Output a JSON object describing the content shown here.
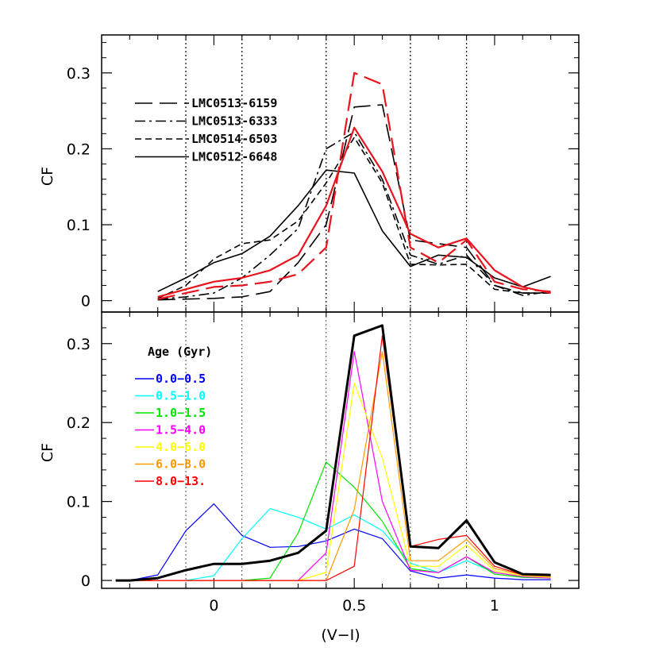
{
  "chart_data": [
    {
      "type": "line",
      "panel": "top",
      "ylabel": "CF",
      "xlim": [
        -0.4,
        1.3
      ],
      "ylim": [
        -0.015,
        0.35
      ],
      "yticks": [
        0,
        0.1,
        0.2,
        0.3
      ],
      "ytick_labels": [
        "0",
        "0.1",
        "0.2",
        "0.3"
      ],
      "vlines": [
        -0.1,
        0.1,
        0.4,
        0.7,
        0.9
      ],
      "series": [
        {
          "name": "LMC0513-6159",
          "dash": "longdash",
          "color": "#000000",
          "x": [
            -0.2,
            -0.1,
            0,
            0.1,
            0.2,
            0.3,
            0.4,
            0.5,
            0.6,
            0.7,
            0.8,
            0.9,
            1.0,
            1.1,
            1.2
          ],
          "y": [
            0.001,
            0.002,
            0.003,
            0.005,
            0.012,
            0.05,
            0.1,
            0.255,
            0.258,
            0.08,
            0.075,
            0.07,
            0.02,
            0.01,
            0.01
          ]
        },
        {
          "name": "LMC0513-6333",
          "dash": "dashdot",
          "color": "#000000",
          "x": [
            -0.2,
            -0.1,
            0,
            0.1,
            0.2,
            0.3,
            0.4,
            0.5,
            0.6,
            0.7,
            0.8,
            0.9,
            1.0,
            1.1,
            1.2
          ],
          "y": [
            0.002,
            0.005,
            0.01,
            0.03,
            0.06,
            0.095,
            0.2,
            0.222,
            0.16,
            0.06,
            0.048,
            0.06,
            0.02,
            0.007,
            0.012
          ]
        },
        {
          "name": "LMC0514-6503",
          "dash": "shortdash",
          "color": "#000000",
          "x": [
            -0.2,
            -0.1,
            0,
            0.1,
            0.2,
            0.3,
            0.4,
            0.5,
            0.6,
            0.7,
            0.8,
            0.9,
            1.0,
            1.1,
            1.2
          ],
          "y": [
            0.003,
            0.02,
            0.055,
            0.075,
            0.08,
            0.105,
            0.155,
            0.215,
            0.155,
            0.048,
            0.047,
            0.048,
            0.015,
            0.01,
            0.01
          ]
        },
        {
          "name": "LMC0512-6648",
          "dash": "solid",
          "color": "#000000",
          "x": [
            -0.2,
            -0.1,
            0,
            0.1,
            0.2,
            0.3,
            0.4,
            0.5,
            0.6,
            0.7,
            0.8,
            0.9,
            1.0,
            1.1,
            1.2
          ],
          "y": [
            0.012,
            0.03,
            0.05,
            0.062,
            0.085,
            0.125,
            0.172,
            0.168,
            0.092,
            0.045,
            0.06,
            0.057,
            0.03,
            0.018,
            0.032
          ]
        },
        {
          "name": "",
          "dash": "longdash",
          "color": "#e8141e",
          "x": [
            -0.2,
            -0.1,
            0,
            0.1,
            0.2,
            0.3,
            0.4,
            0.5,
            0.6,
            0.7,
            0.8,
            0.9,
            1.0,
            1.1,
            1.2
          ],
          "y": [
            0.002,
            0.01,
            0.018,
            0.02,
            0.025,
            0.035,
            0.07,
            0.3,
            0.285,
            0.07,
            0.05,
            0.08,
            0.025,
            0.015,
            0.012
          ]
        },
        {
          "name": "",
          "dash": "solid",
          "color": "#e8141e",
          "x": [
            -0.2,
            -0.1,
            0,
            0.1,
            0.2,
            0.3,
            0.4,
            0.5,
            0.6,
            0.7,
            0.8,
            0.9,
            1.0,
            1.1,
            1.2
          ],
          "y": [
            0.005,
            0.015,
            0.025,
            0.03,
            0.04,
            0.06,
            0.125,
            0.228,
            0.17,
            0.088,
            0.07,
            0.082,
            0.04,
            0.018,
            0.01
          ]
        }
      ]
    },
    {
      "type": "line",
      "panel": "bottom",
      "ylabel": "CF",
      "xlabel": "(V−I)",
      "xlim": [
        -0.4,
        1.3
      ],
      "ylim": [
        -0.01,
        0.34
      ],
      "xticks": [
        0,
        0.5,
        1
      ],
      "xtick_labels": [
        "0",
        "0.5",
        "1"
      ],
      "yticks": [
        0,
        0.1,
        0.2,
        0.3
      ],
      "ytick_labels": [
        "0",
        "0.1",
        "0.2",
        "0.3"
      ],
      "vlines": [
        -0.1,
        0.1,
        0.4,
        0.7,
        0.9
      ],
      "legend_title": "Age (Gyr)",
      "series": [
        {
          "name": "0.0−0.5",
          "color": "#0000ff",
          "width": 1.2,
          "x": [
            -0.35,
            -0.3,
            -0.2,
            -0.1,
            0,
            0.1,
            0.2,
            0.3,
            0.4,
            0.5,
            0.6,
            0.7,
            0.8,
            0.9,
            1.0,
            1.1,
            1.2
          ],
          "y": [
            0,
            0,
            0.007,
            0.063,
            0.097,
            0.057,
            0.042,
            0.043,
            0.05,
            0.065,
            0.053,
            0.012,
            0.003,
            0.007,
            0.003,
            0.001,
            0.001
          ]
        },
        {
          "name": "0.5−1.0",
          "color": "#00ffff",
          "width": 1.2,
          "x": [
            -0.35,
            -0.3,
            -0.2,
            -0.1,
            0,
            0.1,
            0.2,
            0.3,
            0.4,
            0.5,
            0.6,
            0.7,
            0.8,
            0.9,
            1.0,
            1.1,
            1.2
          ],
          "y": [
            0,
            0,
            0,
            0,
            0.006,
            0.053,
            0.091,
            0.08,
            0.065,
            0.083,
            0.063,
            0.022,
            0.01,
            0.025,
            0.01,
            0.005,
            0.003
          ]
        },
        {
          "name": "1.0−1.5",
          "color": "#00e600",
          "width": 1.2,
          "x": [
            -0.35,
            -0.3,
            -0.2,
            -0.1,
            0,
            0.1,
            0.2,
            0.3,
            0.4,
            0.5,
            0.6,
            0.7,
            0.8,
            0.9,
            1.0,
            1.1,
            1.2
          ],
          "y": [
            0,
            0,
            0,
            0,
            0,
            0,
            0.003,
            0.06,
            0.15,
            0.118,
            0.075,
            0.015,
            0.01,
            0.03,
            0.008,
            0.004,
            0.003
          ]
        },
        {
          "name": "1.5−4.0",
          "color": "#ff00ff",
          "width": 1.2,
          "x": [
            -0.35,
            -0.3,
            -0.2,
            -0.1,
            0,
            0.1,
            0.2,
            0.3,
            0.4,
            0.5,
            0.6,
            0.7,
            0.8,
            0.9,
            1.0,
            1.1,
            1.2
          ],
          "y": [
            0,
            0,
            0,
            0,
            0,
            0,
            0,
            0,
            0.035,
            0.29,
            0.1,
            0.013,
            0.01,
            0.03,
            0.01,
            0.005,
            0.003
          ]
        },
        {
          "name": "4.0−6.0",
          "color": "#ffff00",
          "width": 1.2,
          "x": [
            -0.35,
            -0.3,
            -0.2,
            -0.1,
            0,
            0.1,
            0.2,
            0.3,
            0.4,
            0.5,
            0.6,
            0.7,
            0.8,
            0.9,
            1.0,
            1.1,
            1.2
          ],
          "y": [
            0,
            0,
            0,
            0,
            0,
            0,
            0,
            0,
            0.01,
            0.25,
            0.155,
            0.018,
            0.018,
            0.045,
            0.012,
            0.006,
            0.004
          ]
        },
        {
          "name": "6.0−8.0",
          "color": "#ff9900",
          "width": 1.2,
          "x": [
            -0.35,
            -0.3,
            -0.2,
            -0.1,
            0,
            0.1,
            0.2,
            0.3,
            0.4,
            0.5,
            0.6,
            0.7,
            0.8,
            0.9,
            1.0,
            1.1,
            1.2
          ],
          "y": [
            0,
            0,
            0,
            0,
            0,
            0,
            0,
            0,
            0,
            0.09,
            0.29,
            0.025,
            0.025,
            0.052,
            0.015,
            0.007,
            0.005
          ]
        },
        {
          "name": "8.0−13.",
          "color": "#ff0000",
          "width": 1.2,
          "x": [
            -0.35,
            -0.3,
            -0.2,
            -0.1,
            0,
            0.1,
            0.2,
            0.3,
            0.4,
            0.5,
            0.6,
            0.7,
            0.8,
            0.9,
            1.0,
            1.1,
            1.2
          ],
          "y": [
            0,
            0,
            0,
            0,
            0,
            0,
            0,
            0,
            0,
            0.018,
            0.31,
            0.043,
            0.052,
            0.057,
            0.018,
            0.007,
            0.006
          ]
        },
        {
          "name": "",
          "color": "#000000",
          "width": 3,
          "x": [
            -0.35,
            -0.3,
            -0.2,
            -0.1,
            0,
            0.1,
            0.2,
            0.3,
            0.4,
            0.5,
            0.6,
            0.7,
            0.8,
            0.9,
            1.0,
            1.1,
            1.2
          ],
          "y": [
            0,
            0,
            0.003,
            0.013,
            0.021,
            0.021,
            0.025,
            0.035,
            0.063,
            0.31,
            0.323,
            0.043,
            0.041,
            0.076,
            0.023,
            0.008,
            0.007
          ]
        }
      ]
    }
  ]
}
